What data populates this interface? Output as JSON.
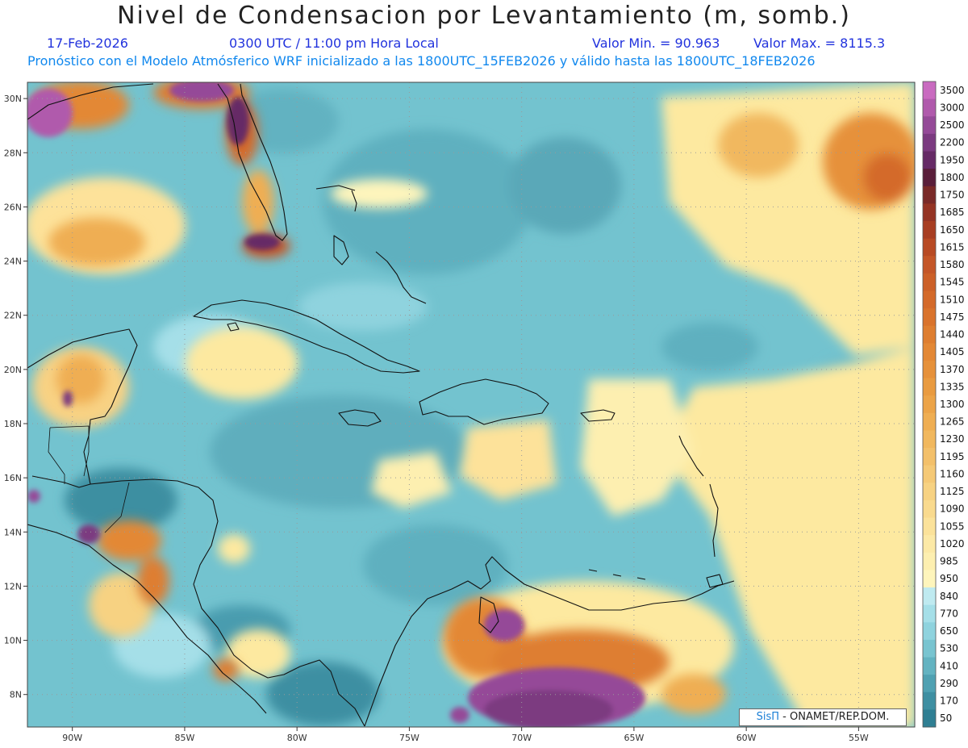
{
  "header": {
    "title": "Nivel de Condensacion por Levantamiento (m, somb.)",
    "date": "17-Feb-2026",
    "time": "0300 UTC / 11:00 pm Hora Local",
    "valmin": "Valor Min. = 90.963",
    "valmax": "Valor Max. = 8115.3",
    "model_line": "Pronóstico con el Modelo Atmósferico WRF inicializado a las 1800UTC_15FEB2026 y válido hasta las  1800UTC_18FEB2026"
  },
  "map": {
    "lon_range": [
      -92,
      -52.5
    ],
    "lat_range": [
      6.8,
      30.6
    ],
    "lon_ticks": [
      {
        "value": -90,
        "label": "90W"
      },
      {
        "value": -85,
        "label": "85W"
      },
      {
        "value": -80,
        "label": "80W"
      },
      {
        "value": -75,
        "label": "75W"
      },
      {
        "value": -70,
        "label": "70W"
      },
      {
        "value": -65,
        "label": "65W"
      },
      {
        "value": -60,
        "label": "60W"
      },
      {
        "value": -55,
        "label": "55W"
      }
    ],
    "lat_ticks": [
      {
        "value": 8,
        "label": "8N"
      },
      {
        "value": 10,
        "label": "10N"
      },
      {
        "value": 12,
        "label": "12N"
      },
      {
        "value": 14,
        "label": "14N"
      },
      {
        "value": 16,
        "label": "16N"
      },
      {
        "value": 18,
        "label": "18N"
      },
      {
        "value": 20,
        "label": "20N"
      },
      {
        "value": 22,
        "label": "22N"
      },
      {
        "value": 24,
        "label": "24N"
      },
      {
        "value": 26,
        "label": "26N"
      },
      {
        "value": 28,
        "label": "28N"
      },
      {
        "value": 30,
        "label": "30N"
      }
    ],
    "grid": true,
    "base_color": "#73c3cf"
  },
  "colorbar": {
    "levels": [
      {
        "label": "3500",
        "color": "#c96bc0"
      },
      {
        "label": "3000",
        "color": "#b05aac"
      },
      {
        "label": "2500",
        "color": "#954a98"
      },
      {
        "label": "2200",
        "color": "#7b3a80"
      },
      {
        "label": "1950",
        "color": "#662a66"
      },
      {
        "label": "1800",
        "color": "#5a1e3a"
      },
      {
        "label": "1750",
        "color": "#7a2a28"
      },
      {
        "label": "1685",
        "color": "#953424"
      },
      {
        "label": "1650",
        "color": "#a83e22"
      },
      {
        "label": "1615",
        "color": "#b84a24"
      },
      {
        "label": "1580",
        "color": "#c45628"
      },
      {
        "label": "1545",
        "color": "#cc6028"
      },
      {
        "label": "1510",
        "color": "#d46a2a"
      },
      {
        "label": "1475",
        "color": "#d9732c"
      },
      {
        "label": "1440",
        "color": "#de7e30"
      },
      {
        "label": "1405",
        "color": "#e38835"
      },
      {
        "label": "1370",
        "color": "#e6913a"
      },
      {
        "label": "1335",
        "color": "#e99b40"
      },
      {
        "label": "1300",
        "color": "#ecA448"
      },
      {
        "label": "1265",
        "color": "#efae52"
      },
      {
        "label": "1230",
        "color": "#f1b85e"
      },
      {
        "label": "1195",
        "color": "#f3c06a"
      },
      {
        "label": "1160",
        "color": "#f5c976"
      },
      {
        "label": "1125",
        "color": "#f7d282"
      },
      {
        "label": "1090",
        "color": "#f9da8e"
      },
      {
        "label": "1055",
        "color": "#fbe29a"
      },
      {
        "label": "1020",
        "color": "#fce9a6"
      },
      {
        "label": "985",
        "color": "#fdefb0"
      },
      {
        "label": "950",
        "color": "#fef5bc"
      },
      {
        "label": "840",
        "color": "#bfeaf0"
      },
      {
        "label": "770",
        "color": "#a5dfe8"
      },
      {
        "label": "650",
        "color": "#8fd3de"
      },
      {
        "label": "530",
        "color": "#78c4d0"
      },
      {
        "label": "410",
        "color": "#63b3c1"
      },
      {
        "label": "290",
        "color": "#4fa1b2"
      },
      {
        "label": "170",
        "color": "#3e8fa2"
      },
      {
        "label": "50",
        "color": "#2f7f93"
      }
    ]
  },
  "credit": {
    "brand": "SisΠ",
    "text": " - ONAMET/REP.DOM."
  },
  "colors": {
    "title": "#222222",
    "subtitle_blue": "#2233dd",
    "subtitle_light": "#1188ee"
  }
}
